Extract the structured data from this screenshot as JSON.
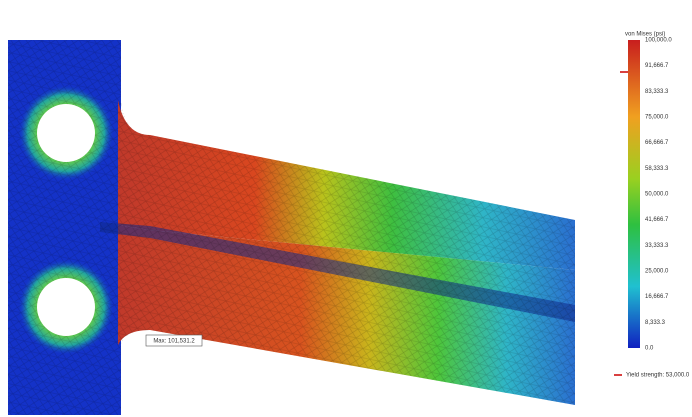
{
  "legend": {
    "title": "von Mises (psi)",
    "ticks": [
      "100,000.0",
      "91,666.7",
      "83,333.3",
      "75,000.0",
      "66,666.7",
      "58,333.3",
      "50,000.0",
      "41,666.7",
      "33,333.3",
      "25,000.0",
      "16,666.7",
      "8,333.3",
      "0.0"
    ],
    "yield_label": "Yield strength: 53,000.0"
  },
  "probe": {
    "label": "Max: 101,531.2"
  }
}
